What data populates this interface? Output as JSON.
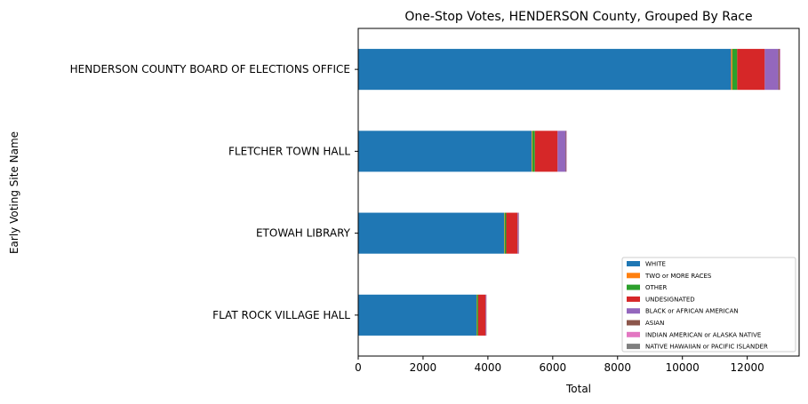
{
  "chart_data": {
    "type": "bar",
    "orientation": "horizontal",
    "stacked": true,
    "title": "One-Stop Votes, HENDERSON County, Grouped By Race",
    "xlabel": "Total",
    "ylabel": "Early Voting Site Name",
    "xlim": [
      0,
      13600
    ],
    "xticks": [
      0,
      2000,
      4000,
      6000,
      8000,
      10000,
      12000
    ],
    "xtick_labels": [
      "0",
      "2000",
      "4000",
      "6000",
      "8000",
      "10000",
      "12000"
    ],
    "grid": false,
    "legend_position": "bottom-right",
    "categories": [
      "HENDERSON COUNTY BOARD OF ELECTIONS OFFICE",
      "FLETCHER TOWN HALL",
      "ETOWAH LIBRARY",
      "FLAT ROCK VILLAGE HALL"
    ],
    "series": [
      {
        "name": "WHITE",
        "color": "#1f77b4",
        "values": [
          11500,
          5350,
          4500,
          3650
        ]
      },
      {
        "name": "TWO or MORE RACES",
        "color": "#ff7f0e",
        "values": [
          40,
          20,
          15,
          10
        ]
      },
      {
        "name": "OTHER",
        "color": "#2ca02c",
        "values": [
          150,
          80,
          50,
          40
        ]
      },
      {
        "name": "UNDESIGNATED",
        "color": "#d62728",
        "values": [
          850,
          700,
          350,
          230
        ]
      },
      {
        "name": "BLACK or AFRICAN AMERICAN",
        "color": "#9467bd",
        "values": [
          420,
          250,
          30,
          20
        ]
      },
      {
        "name": "ASIAN",
        "color": "#8c564b",
        "values": [
          40,
          20,
          10,
          5
        ]
      },
      {
        "name": "INDIAN AMERICAN or ALASKA NATIVE",
        "color": "#e377c2",
        "values": [
          20,
          10,
          5,
          3
        ]
      },
      {
        "name": "NATIVE HAWAIIAN or PACIFIC ISLANDER",
        "color": "#7f7f7f",
        "values": [
          5,
          3,
          2,
          1
        ]
      }
    ]
  }
}
